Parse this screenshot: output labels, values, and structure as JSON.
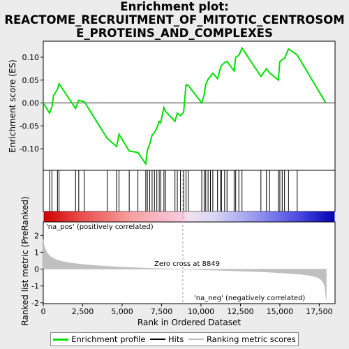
{
  "title_lines": [
    "Enrichment plot:",
    "REACTOME_RECRUITMENT_OF_MITOTIC_CENTROSOM",
    "E_PROTEINS_AND_COMPLEXES"
  ],
  "colors": {
    "es_line": "#00e000",
    "hits": "#000000",
    "ranking": "#c0c0c0",
    "pos_label": "#cc0000",
    "neg_label": "#0000cc",
    "zero_cross": "#a0a0a0"
  },
  "legend": [
    {
      "label": "Enrichment profile",
      "icon": "green-line"
    },
    {
      "label": "Hits",
      "icon": "black-line"
    },
    {
      "label": "Ranking metric scores",
      "icon": "gray-line"
    }
  ],
  "annotations": {
    "pos_label": "'na_pos' (positively correlated)",
    "neg_label": "'na_neg' (negatively correlated)",
    "zero_cross": "Zero cross at 8849"
  },
  "chart_data": [
    {
      "type": "line",
      "name": "enrichment-profile",
      "ylabel": "Enrichment score (ES)",
      "xlim": [
        0,
        18500
      ],
      "ylim": [
        -0.147,
        0.135
      ],
      "yticks": [
        -0.1,
        -0.05,
        0.0,
        0.05,
        0.1
      ],
      "ytick_labels": [
        "-0.10",
        "-0.05",
        "0.00",
        "0.05",
        "0.10"
      ],
      "grid": false,
      "x": [
        0,
        400,
        550,
        650,
        900,
        1000,
        2050,
        2250,
        2600,
        4050,
        4650,
        4800,
        5450,
        6000,
        6500,
        6600,
        6750,
        6900,
        7050,
        7200,
        7350,
        7450,
        7650,
        7750,
        8350,
        8500,
        8700,
        8900,
        9050,
        9200,
        10050,
        10200,
        10300,
        10450,
        10600,
        10750,
        11050,
        11250,
        11300,
        11500,
        11650,
        12100,
        12200,
        12400,
        12600,
        13800,
        14150,
        14350,
        14900,
        15000,
        15150,
        15300,
        15550,
        16100,
        17900
      ],
      "y": [
        0.0,
        -0.022,
        -0.008,
        0.016,
        0.03,
        0.042,
        -0.012,
        0.006,
        0.003,
        -0.077,
        -0.095,
        -0.068,
        -0.105,
        -0.108,
        -0.133,
        -0.103,
        -0.09,
        -0.07,
        -0.065,
        -0.055,
        -0.04,
        -0.043,
        -0.01,
        -0.018,
        -0.04,
        -0.022,
        -0.028,
        -0.02,
        0.04,
        0.038,
        0.0,
        0.018,
        0.04,
        0.052,
        0.058,
        0.065,
        0.053,
        0.078,
        0.082,
        0.088,
        0.091,
        0.07,
        0.1,
        0.104,
        0.12,
        0.058,
        0.075,
        0.066,
        0.05,
        0.09,
        0.095,
        0.097,
        0.118,
        0.105,
        0.001
      ]
    },
    {
      "type": "hits",
      "name": "hits",
      "x": [
        400,
        550,
        900,
        1000,
        2050,
        2250,
        2600,
        4050,
        4650,
        4800,
        5450,
        6000,
        6500,
        6600,
        6750,
        6900,
        7050,
        7200,
        7350,
        7450,
        7650,
        7750,
        8350,
        8500,
        8700,
        8900,
        9050,
        9200,
        10050,
        10200,
        10300,
        10450,
        10600,
        10750,
        11050,
        11250,
        11300,
        11500,
        11650,
        12100,
        12200,
        12400,
        12600,
        13800,
        14150,
        14350,
        14900,
        15000,
        15150,
        15300,
        15550,
        16100
      ]
    },
    {
      "type": "area",
      "name": "ranking-metric",
      "xlabel": "Rank in Ordered Dataset",
      "ylabel": "Ranked list metric (PreRanked)",
      "xlim": [
        0,
        18500
      ],
      "ylim": [
        -2.05,
        2.8
      ],
      "yticks": [
        -2,
        -1,
        0,
        1,
        2
      ],
      "ytick_labels": [
        "-2",
        "-1",
        "0",
        "1",
        "2"
      ],
      "xticks": [
        0,
        2500,
        5000,
        7500,
        10000,
        12500,
        15000,
        17500
      ],
      "xtick_labels": [
        "0",
        "2,500",
        "5,000",
        "7,500",
        "10,000",
        "12,500",
        "15,000",
        "17,500"
      ],
      "zero_cross": 8849,
      "n": 17950,
      "x": [
        0,
        50,
        150,
        300,
        500,
        800,
        1200,
        1700,
        2500,
        3500,
        5000,
        6500,
        8000,
        8849,
        10000,
        12000,
        14000,
        15500,
        16500,
        17000,
        17400,
        17600,
        17750,
        17850,
        17900,
        17950
      ],
      "y": [
        1.75,
        1.45,
        1.15,
        0.9,
        0.72,
        0.57,
        0.46,
        0.37,
        0.28,
        0.2,
        0.12,
        0.06,
        0.02,
        0.0,
        -0.04,
        -0.1,
        -0.17,
        -0.25,
        -0.33,
        -0.4,
        -0.5,
        -0.62,
        -0.8,
        -1.05,
        -1.5,
        -1.85
      ]
    }
  ]
}
